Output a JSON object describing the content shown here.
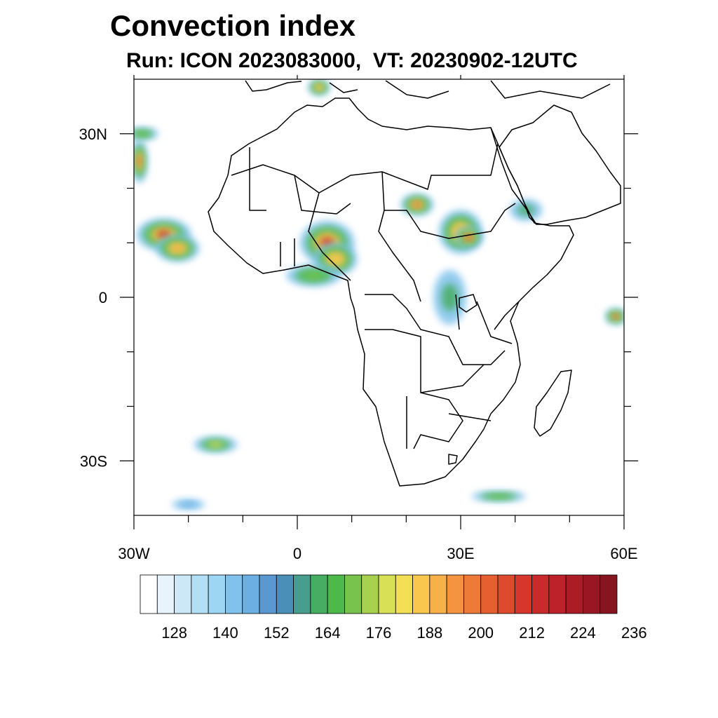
{
  "title": "Convection index",
  "subtitle": "Run: ICON 2023083000,  VT: 20230902-12UTC",
  "map": {
    "region": "Africa",
    "lon_range": [
      -30,
      60
    ],
    "lat_range": [
      -40,
      40
    ],
    "lon_tick_labels": [
      {
        "lon": -30,
        "label": "30W"
      },
      {
        "lon": 0,
        "label": "0"
      },
      {
        "lon": 30,
        "label": "30E"
      },
      {
        "lon": 60,
        "label": "60E"
      }
    ],
    "lat_tick_labels": [
      {
        "lat": 30,
        "label": "30N"
      },
      {
        "lat": 0,
        "label": "0"
      },
      {
        "lat": -30,
        "label": "30S"
      }
    ],
    "minor_lon_ticks": [
      -20,
      -10,
      10,
      20,
      40,
      50
    ],
    "minor_lat_ticks": [
      20,
      10,
      -10,
      -20
    ]
  },
  "colorbar": {
    "colors": [
      "#ffffff",
      "#e8f4fb",
      "#cce8f7",
      "#b2dff5",
      "#9dd6f3",
      "#80c2ec",
      "#6cb0e3",
      "#5a98d1",
      "#4a8fb6",
      "#479e8d",
      "#46ad63",
      "#4cb94b",
      "#78c34d",
      "#a8d14f",
      "#d8e155",
      "#f2df55",
      "#f7c74e",
      "#f8b048",
      "#f59440",
      "#ee7a38",
      "#e65f31",
      "#de4a2d",
      "#d6362c",
      "#cb2a2c",
      "#bd222b",
      "#ab1c27",
      "#981722",
      "#87141f"
    ],
    "labels": [
      "128",
      "140",
      "152",
      "164",
      "176",
      "188",
      "200",
      "212",
      "224",
      "236"
    ]
  },
  "convection_cells": [
    {
      "lon": -24.5,
      "lat": 11.5,
      "rx": 5,
      "ry": 3,
      "value": 205
    },
    {
      "lon": -22,
      "lat": 9,
      "rx": 4,
      "ry": 2.5,
      "value": 180
    },
    {
      "lon": -29,
      "lat": 25,
      "rx": 1.5,
      "ry": 4,
      "value": 190
    },
    {
      "lon": -28.5,
      "lat": 30,
      "rx": 3,
      "ry": 1.2,
      "value": 160
    },
    {
      "lon": 5.5,
      "lat": 10,
      "rx": 5,
      "ry": 4,
      "value": 200
    },
    {
      "lon": 7,
      "lat": 7,
      "rx": 4,
      "ry": 3,
      "value": 175
    },
    {
      "lon": 3,
      "lat": 4,
      "rx": 5,
      "ry": 2,
      "value": 158
    },
    {
      "lon": 22,
      "lat": 17,
      "rx": 3,
      "ry": 2,
      "value": 192
    },
    {
      "lon": 30,
      "lat": 12,
      "rx": 4,
      "ry": 4,
      "value": 175
    },
    {
      "lon": 31.5,
      "lat": 11,
      "rx": 2.5,
      "ry": 2,
      "value": 205
    },
    {
      "lon": 28,
      "lat": 0,
      "rx": 3,
      "ry": 5,
      "value": 150
    },
    {
      "lon": 42,
      "lat": 16,
      "rx": 3,
      "ry": 2,
      "value": 150
    },
    {
      "lon": 58.5,
      "lat": -3.5,
      "rx": 2,
      "ry": 1.5,
      "value": 205
    },
    {
      "lon": -15,
      "lat": -27,
      "rx": 4,
      "ry": 1.5,
      "value": 170
    },
    {
      "lon": 37,
      "lat": -36.5,
      "rx": 5,
      "ry": 1,
      "value": 160
    },
    {
      "lon": 4,
      "lat": 38.5,
      "rx": 2,
      "ry": 1.5,
      "value": 175
    },
    {
      "lon": -20,
      "lat": -38,
      "rx": 3,
      "ry": 1,
      "value": 135
    }
  ]
}
